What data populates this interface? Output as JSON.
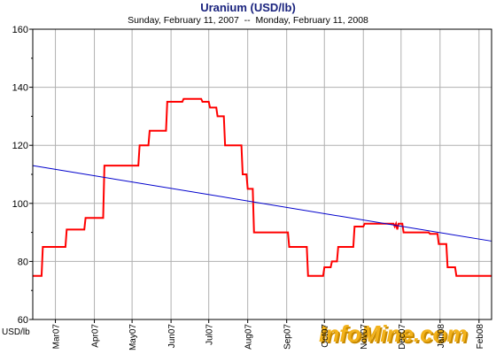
{
  "chart_data": {
    "type": "line",
    "title": "Uranium (USD/lb)",
    "subtitle": "Sunday, February 11, 2007  --  Monday, February 11, 2008",
    "ylabel": "USD/lb",
    "ylim": [
      60,
      160
    ],
    "yticks": [
      60,
      80,
      100,
      120,
      140,
      160
    ],
    "xlim": [
      "2007-02-11",
      "2008-02-11"
    ],
    "xticks": [
      {
        "date": "2007-03-01",
        "label": "Mar07"
      },
      {
        "date": "2007-04-01",
        "label": "Apr07"
      },
      {
        "date": "2007-05-01",
        "label": "May07"
      },
      {
        "date": "2007-06-01",
        "label": "Jun07"
      },
      {
        "date": "2007-07-01",
        "label": "Jul07"
      },
      {
        "date": "2007-08-01",
        "label": "Aug07"
      },
      {
        "date": "2007-09-01",
        "label": "Sep07"
      },
      {
        "date": "2007-10-01",
        "label": "Oct07"
      },
      {
        "date": "2007-11-01",
        "label": "Nov07"
      },
      {
        "date": "2007-12-01",
        "label": "Dec07"
      },
      {
        "date": "2008-01-01",
        "label": "Jan08"
      },
      {
        "date": "2008-02-01",
        "label": "Feb08"
      }
    ],
    "grid": true,
    "series": [
      {
        "color": "#ff0000",
        "style": "step",
        "points": [
          [
            "2007-02-11",
            75
          ],
          [
            "2007-02-18",
            75
          ],
          [
            "2007-02-19",
            85
          ],
          [
            "2007-03-09",
            85
          ],
          [
            "2007-03-10",
            91
          ],
          [
            "2007-03-24",
            91
          ],
          [
            "2007-03-25",
            95
          ],
          [
            "2007-04-08",
            95
          ],
          [
            "2007-04-09",
            113
          ],
          [
            "2007-04-30",
            113
          ],
          [
            "2007-05-06",
            113
          ],
          [
            "2007-05-07",
            120
          ],
          [
            "2007-05-14",
            120
          ],
          [
            "2007-05-15",
            125
          ],
          [
            "2007-05-28",
            125
          ],
          [
            "2007-05-29",
            135
          ],
          [
            "2007-06-10",
            135
          ],
          [
            "2007-06-11",
            136
          ],
          [
            "2007-06-25",
            136
          ],
          [
            "2007-06-26",
            135
          ],
          [
            "2007-07-01",
            135
          ],
          [
            "2007-07-02",
            133
          ],
          [
            "2007-07-07",
            133
          ],
          [
            "2007-07-08",
            130
          ],
          [
            "2007-07-13",
            130
          ],
          [
            "2007-07-14",
            120
          ],
          [
            "2007-07-27",
            120
          ],
          [
            "2007-07-28",
            110
          ],
          [
            "2007-07-31",
            110
          ],
          [
            "2007-08-01",
            105
          ],
          [
            "2007-08-05",
            105
          ],
          [
            "2007-08-06",
            90
          ],
          [
            "2007-09-02",
            90
          ],
          [
            "2007-09-03",
            85
          ],
          [
            "2007-09-17",
            85
          ],
          [
            "2007-09-18",
            75
          ],
          [
            "2007-09-30",
            75
          ],
          [
            "2007-10-01",
            78
          ],
          [
            "2007-10-06",
            78
          ],
          [
            "2007-10-07",
            80
          ],
          [
            "2007-10-11",
            80
          ],
          [
            "2007-10-12",
            85
          ],
          [
            "2007-10-24",
            85
          ],
          [
            "2007-10-25",
            92
          ],
          [
            "2007-11-01",
            92
          ],
          [
            "2007-11-02",
            93
          ],
          [
            "2007-11-25",
            93
          ],
          [
            "2007-11-26",
            92
          ],
          [
            "2007-11-27",
            93
          ],
          [
            "2007-11-28",
            91
          ],
          [
            "2007-11-29",
            93
          ],
          [
            "2007-12-02",
            93
          ],
          [
            "2007-12-03",
            90
          ],
          [
            "2007-12-23",
            90
          ],
          [
            "2007-12-24",
            89.5
          ],
          [
            "2007-12-30",
            89.5
          ],
          [
            "2007-12-31",
            86
          ],
          [
            "2008-01-06",
            86
          ],
          [
            "2008-01-07",
            78
          ],
          [
            "2008-01-13",
            78
          ],
          [
            "2008-01-14",
            75
          ],
          [
            "2008-02-11",
            75
          ]
        ]
      },
      {
        "color": "#0000cc",
        "style": "trend",
        "points": [
          [
            "2007-02-11",
            113
          ],
          [
            "2008-02-11",
            87
          ]
        ]
      }
    ]
  },
  "watermark": {
    "text_main": "InfoMine",
    "text_suffix": ".com",
    "color": "#f2b21b",
    "shadow_color": "#c98a00"
  }
}
